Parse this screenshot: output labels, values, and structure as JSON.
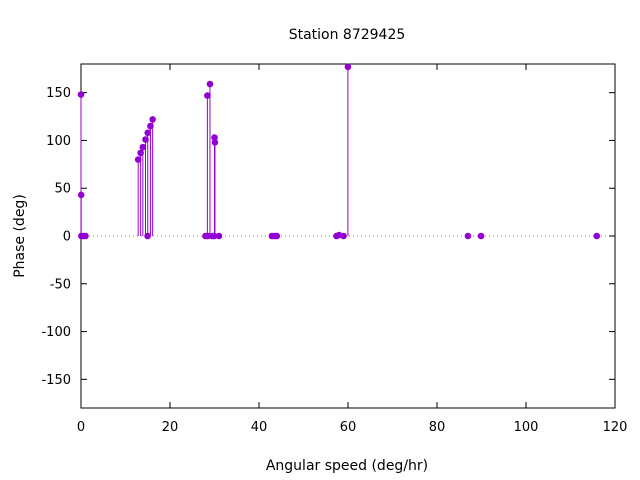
{
  "chart_data": {
    "type": "scatter",
    "style": "impulses-with-points",
    "title": "Station 8729425",
    "xlabel": "Angular speed (deg/hr)",
    "ylabel": "Phase (deg)",
    "xlim": [
      0,
      120
    ],
    "ylim": [
      -180,
      180
    ],
    "xticks": [
      0,
      20,
      40,
      60,
      80,
      100,
      120
    ],
    "yticks": [
      -150,
      -100,
      -50,
      0,
      50,
      100,
      150
    ],
    "zero_line": "dotted",
    "grid": false,
    "series_color": "#9400d3",
    "points": [
      [
        0.0,
        148
      ],
      [
        0.04,
        43
      ],
      [
        0.08,
        0
      ],
      [
        0.55,
        0
      ],
      [
        1.0,
        0
      ],
      [
        12.85,
        80
      ],
      [
        13.4,
        87
      ],
      [
        13.9,
        93
      ],
      [
        14.5,
        101
      ],
      [
        14.96,
        0
      ],
      [
        15.0,
        108
      ],
      [
        15.6,
        115
      ],
      [
        16.1,
        122
      ],
      [
        27.97,
        0
      ],
      [
        28.4,
        147
      ],
      [
        28.5,
        0
      ],
      [
        28.98,
        159
      ],
      [
        29.5,
        0
      ],
      [
        29.96,
        0
      ],
      [
        30.0,
        103
      ],
      [
        30.1,
        98
      ],
      [
        31.0,
        0
      ],
      [
        42.9,
        0
      ],
      [
        43.5,
        0
      ],
      [
        44.0,
        0
      ],
      [
        57.4,
        0
      ],
      [
        58.0,
        1
      ],
      [
        59.0,
        0
      ],
      [
        59.98,
        177
      ],
      [
        86.95,
        0
      ],
      [
        89.9,
        0
      ],
      [
        115.9,
        0
      ]
    ]
  }
}
